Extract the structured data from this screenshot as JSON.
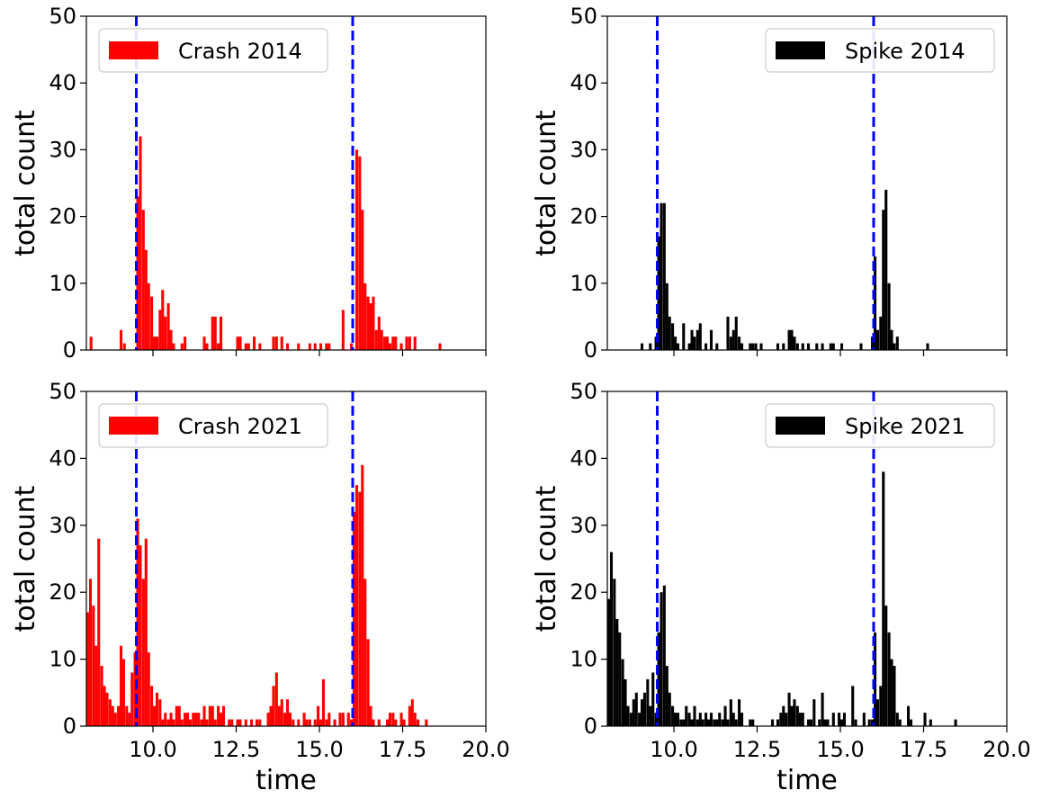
{
  "chart_data": [
    {
      "type": "bar",
      "panel": "top-left",
      "legend": "Crash 2014",
      "legend_position": "top-left",
      "color": "#ff0000",
      "xlim": [
        8.0,
        20.0
      ],
      "ylim": [
        0,
        50
      ],
      "xticks": [
        10.0,
        12.5,
        15.0,
        17.5,
        20.0
      ],
      "xtick_labels": [],
      "yticks": [
        0,
        10,
        20,
        30,
        40,
        50
      ],
      "ytick_labels": [
        "0",
        "10",
        "20",
        "30",
        "40",
        "50"
      ],
      "xlabel": "",
      "ylabel": "total count",
      "vlines": [
        9.5,
        16.0
      ],
      "vline_color": "#0000ff",
      "bin_width": 0.0833,
      "bins": [
        [
          8.1,
          2
        ],
        [
          9.0,
          3
        ],
        [
          9.1,
          1
        ],
        [
          9.5,
          23
        ],
        [
          9.58,
          32
        ],
        [
          9.67,
          21
        ],
        [
          9.75,
          15
        ],
        [
          9.83,
          10
        ],
        [
          9.92,
          8
        ],
        [
          10.0,
          2
        ],
        [
          10.08,
          2
        ],
        [
          10.17,
          6
        ],
        [
          10.25,
          9
        ],
        [
          10.33,
          5
        ],
        [
          10.42,
          7
        ],
        [
          10.5,
          3
        ],
        [
          10.58,
          1
        ],
        [
          10.83,
          1
        ],
        [
          10.92,
          2
        ],
        [
          11.5,
          2
        ],
        [
          11.58,
          1
        ],
        [
          11.75,
          5
        ],
        [
          11.83,
          5
        ],
        [
          11.92,
          1
        ],
        [
          12.0,
          5
        ],
        [
          12.5,
          2
        ],
        [
          12.58,
          2
        ],
        [
          12.75,
          1
        ],
        [
          12.83,
          1
        ],
        [
          13.0,
          2
        ],
        [
          13.17,
          1
        ],
        [
          13.58,
          2
        ],
        [
          13.67,
          2
        ],
        [
          13.83,
          2
        ],
        [
          14.0,
          1
        ],
        [
          14.33,
          1
        ],
        [
          14.67,
          1
        ],
        [
          14.83,
          1
        ],
        [
          15.0,
          1
        ],
        [
          15.17,
          1
        ],
        [
          15.25,
          1
        ],
        [
          15.67,
          6
        ],
        [
          15.92,
          1
        ],
        [
          16.08,
          30
        ],
        [
          16.17,
          29
        ],
        [
          16.25,
          21
        ],
        [
          16.33,
          10
        ],
        [
          16.42,
          8
        ],
        [
          16.5,
          7
        ],
        [
          16.58,
          8
        ],
        [
          16.67,
          3
        ],
        [
          16.75,
          5
        ],
        [
          16.83,
          3
        ],
        [
          16.92,
          2
        ],
        [
          17.0,
          2
        ],
        [
          17.08,
          1
        ],
        [
          17.17,
          2
        ],
        [
          17.25,
          2
        ],
        [
          17.42,
          1
        ],
        [
          17.58,
          2
        ],
        [
          17.67,
          2
        ],
        [
          17.83,
          2
        ],
        [
          18.58,
          1
        ]
      ]
    },
    {
      "type": "bar",
      "panel": "top-right",
      "legend": "Spike 2014",
      "legend_position": "top-right",
      "color": "#000000",
      "xlim": [
        8.0,
        20.0
      ],
      "ylim": [
        0,
        50
      ],
      "xticks": [
        10.0,
        12.5,
        15.0,
        17.5,
        20.0
      ],
      "xtick_labels": [],
      "yticks": [
        0,
        10,
        20,
        30,
        40,
        50
      ],
      "ytick_labels": [
        "0",
        "10",
        "20",
        "30",
        "40",
        "50"
      ],
      "xlabel": "",
      "ylabel": "total count",
      "vlines": [
        9.5,
        16.0
      ],
      "vline_color": "#0000ff",
      "bin_width": 0.0833,
      "bins": [
        [
          9.0,
          1
        ],
        [
          9.25,
          1
        ],
        [
          9.42,
          2
        ],
        [
          9.5,
          17
        ],
        [
          9.58,
          22
        ],
        [
          9.67,
          22
        ],
        [
          9.75,
          10
        ],
        [
          9.83,
          5
        ],
        [
          9.92,
          4
        ],
        [
          10.0,
          2
        ],
        [
          10.08,
          1
        ],
        [
          10.25,
          4
        ],
        [
          10.42,
          1
        ],
        [
          10.5,
          3
        ],
        [
          10.58,
          2
        ],
        [
          10.67,
          3
        ],
        [
          10.75,
          4
        ],
        [
          10.92,
          1
        ],
        [
          11.08,
          3
        ],
        [
          11.25,
          1
        ],
        [
          11.58,
          5
        ],
        [
          11.67,
          2
        ],
        [
          11.75,
          3
        ],
        [
          11.83,
          5
        ],
        [
          11.92,
          2
        ],
        [
          12.0,
          1
        ],
        [
          12.25,
          1
        ],
        [
          12.33,
          1
        ],
        [
          12.42,
          1
        ],
        [
          12.58,
          1
        ],
        [
          13.08,
          1
        ],
        [
          13.25,
          1
        ],
        [
          13.42,
          3
        ],
        [
          13.5,
          3
        ],
        [
          13.58,
          2
        ],
        [
          13.67,
          1
        ],
        [
          13.83,
          1
        ],
        [
          14.0,
          1
        ],
        [
          14.25,
          1
        ],
        [
          14.42,
          1
        ],
        [
          14.67,
          1
        ],
        [
          14.75,
          1
        ],
        [
          15.0,
          1
        ],
        [
          15.58,
          1
        ],
        [
          15.92,
          2
        ],
        [
          16.0,
          14
        ],
        [
          16.08,
          3
        ],
        [
          16.17,
          5
        ],
        [
          16.25,
          21
        ],
        [
          16.33,
          24
        ],
        [
          16.42,
          10
        ],
        [
          16.5,
          3
        ],
        [
          16.58,
          1
        ],
        [
          16.67,
          2
        ],
        [
          17.58,
          1
        ]
      ]
    },
    {
      "type": "bar",
      "panel": "bottom-left",
      "legend": "Crash 2021",
      "legend_position": "top-left",
      "color": "#ff0000",
      "xlim": [
        8.0,
        20.0
      ],
      "ylim": [
        0,
        50
      ],
      "xticks": [
        10.0,
        12.5,
        15.0,
        17.5,
        20.0
      ],
      "xtick_labels": [
        "10.0",
        "12.5",
        "15.0",
        "17.5",
        "20.0"
      ],
      "yticks": [
        0,
        10,
        20,
        30,
        40,
        50
      ],
      "ytick_labels": [
        "0",
        "10",
        "20",
        "30",
        "40",
        "50"
      ],
      "xlabel": "time",
      "ylabel": "total count",
      "vlines": [
        9.5,
        16.0
      ],
      "vline_color": "#0000ff",
      "bin_width": 0.0833,
      "bins": [
        [
          8.0,
          17
        ],
        [
          8.08,
          22
        ],
        [
          8.17,
          18
        ],
        [
          8.25,
          12
        ],
        [
          8.33,
          28
        ],
        [
          8.42,
          9
        ],
        [
          8.5,
          6
        ],
        [
          8.58,
          5
        ],
        [
          8.67,
          4
        ],
        [
          8.75,
          3
        ],
        [
          8.83,
          2
        ],
        [
          8.92,
          3
        ],
        [
          9.0,
          12
        ],
        [
          9.08,
          10
        ],
        [
          9.17,
          3
        ],
        [
          9.25,
          2
        ],
        [
          9.33,
          8
        ],
        [
          9.42,
          11
        ],
        [
          9.5,
          31
        ],
        [
          9.58,
          27
        ],
        [
          9.67,
          22
        ],
        [
          9.75,
          28
        ],
        [
          9.83,
          11
        ],
        [
          9.92,
          6
        ],
        [
          10.0,
          3
        ],
        [
          10.08,
          5
        ],
        [
          10.17,
          4
        ],
        [
          10.25,
          1
        ],
        [
          10.33,
          2
        ],
        [
          10.42,
          1
        ],
        [
          10.5,
          2
        ],
        [
          10.58,
          1
        ],
        [
          10.67,
          3
        ],
        [
          10.75,
          3
        ],
        [
          10.83,
          1
        ],
        [
          10.92,
          2
        ],
        [
          11.0,
          2
        ],
        [
          11.08,
          1
        ],
        [
          11.17,
          2
        ],
        [
          11.25,
          2
        ],
        [
          11.33,
          2
        ],
        [
          11.42,
          1
        ],
        [
          11.5,
          3
        ],
        [
          11.58,
          1
        ],
        [
          11.67,
          3
        ],
        [
          11.75,
          3
        ],
        [
          11.83,
          1
        ],
        [
          11.92,
          3
        ],
        [
          12.0,
          2
        ],
        [
          12.08,
          3
        ],
        [
          12.25,
          1
        ],
        [
          12.33,
          1
        ],
        [
          12.5,
          1
        ],
        [
          12.58,
          1
        ],
        [
          12.75,
          1
        ],
        [
          12.92,
          1
        ],
        [
          13.08,
          1
        ],
        [
          13.17,
          1
        ],
        [
          13.42,
          2
        ],
        [
          13.5,
          3
        ],
        [
          13.58,
          6
        ],
        [
          13.67,
          8
        ],
        [
          13.75,
          3
        ],
        [
          13.83,
          4
        ],
        [
          13.92,
          2
        ],
        [
          14.0,
          4
        ],
        [
          14.08,
          2
        ],
        [
          14.17,
          1
        ],
        [
          14.33,
          1
        ],
        [
          14.5,
          2
        ],
        [
          14.58,
          1
        ],
        [
          14.67,
          1
        ],
        [
          14.83,
          1
        ],
        [
          14.92,
          3
        ],
        [
          15.0,
          1
        ],
        [
          15.08,
          7
        ],
        [
          15.17,
          1
        ],
        [
          15.25,
          2
        ],
        [
          15.42,
          1
        ],
        [
          15.58,
          2
        ],
        [
          15.67,
          2
        ],
        [
          15.83,
          2
        ],
        [
          15.92,
          1
        ],
        [
          16.0,
          32
        ],
        [
          16.08,
          36
        ],
        [
          16.17,
          35
        ],
        [
          16.25,
          39
        ],
        [
          16.33,
          22
        ],
        [
          16.42,
          13
        ],
        [
          16.5,
          3
        ],
        [
          16.58,
          1
        ],
        [
          16.75,
          1
        ],
        [
          17.0,
          1
        ],
        [
          17.08,
          2
        ],
        [
          17.17,
          2
        ],
        [
          17.25,
          1
        ],
        [
          17.42,
          2
        ],
        [
          17.5,
          1
        ],
        [
          17.67,
          3
        ],
        [
          17.75,
          4
        ],
        [
          17.83,
          2
        ],
        [
          17.92,
          1
        ],
        [
          18.17,
          1
        ]
      ]
    },
    {
      "type": "bar",
      "panel": "bottom-right",
      "legend": "Spike 2021",
      "legend_position": "top-right",
      "color": "#000000",
      "xlim": [
        8.0,
        20.0
      ],
      "ylim": [
        0,
        50
      ],
      "xticks": [
        10.0,
        12.5,
        15.0,
        17.5,
        20.0
      ],
      "xtick_labels": [
        "10.0",
        "12.5",
        "15.0",
        "17.5",
        "20.0"
      ],
      "yticks": [
        0,
        10,
        20,
        30,
        40,
        50
      ],
      "ytick_labels": [
        "0",
        "10",
        "20",
        "30",
        "40",
        "50"
      ],
      "xlabel": "time",
      "ylabel": "total count",
      "vlines": [
        9.5,
        16.0
      ],
      "vline_color": "#0000ff",
      "bin_width": 0.0833,
      "bins": [
        [
          8.0,
          19
        ],
        [
          8.08,
          26
        ],
        [
          8.17,
          22
        ],
        [
          8.25,
          16
        ],
        [
          8.33,
          14
        ],
        [
          8.42,
          10
        ],
        [
          8.5,
          7
        ],
        [
          8.58,
          3
        ],
        [
          8.67,
          2
        ],
        [
          8.75,
          4
        ],
        [
          8.83,
          5
        ],
        [
          8.92,
          2
        ],
        [
          9.0,
          4
        ],
        [
          9.08,
          5
        ],
        [
          9.17,
          7
        ],
        [
          9.25,
          3
        ],
        [
          9.33,
          8
        ],
        [
          9.42,
          2
        ],
        [
          9.5,
          14
        ],
        [
          9.58,
          20
        ],
        [
          9.67,
          21
        ],
        [
          9.75,
          9
        ],
        [
          9.83,
          5
        ],
        [
          9.92,
          3
        ],
        [
          10.0,
          2
        ],
        [
          10.08,
          2
        ],
        [
          10.17,
          1
        ],
        [
          10.25,
          1
        ],
        [
          10.33,
          3
        ],
        [
          10.42,
          2
        ],
        [
          10.5,
          1
        ],
        [
          10.58,
          3
        ],
        [
          10.67,
          1
        ],
        [
          10.75,
          2
        ],
        [
          10.83,
          1
        ],
        [
          10.92,
          2
        ],
        [
          11.0,
          1
        ],
        [
          11.08,
          2
        ],
        [
          11.17,
          1
        ],
        [
          11.25,
          1
        ],
        [
          11.33,
          2
        ],
        [
          11.42,
          1
        ],
        [
          11.5,
          3
        ],
        [
          11.58,
          1
        ],
        [
          11.67,
          4
        ],
        [
          11.75,
          2
        ],
        [
          11.83,
          1
        ],
        [
          11.92,
          4
        ],
        [
          12.0,
          2
        ],
        [
          12.25,
          1
        ],
        [
          12.33,
          1
        ],
        [
          12.92,
          1
        ],
        [
          13.08,
          1
        ],
        [
          13.17,
          2
        ],
        [
          13.25,
          3
        ],
        [
          13.33,
          2
        ],
        [
          13.42,
          5
        ],
        [
          13.5,
          3
        ],
        [
          13.58,
          4
        ],
        [
          13.67,
          3
        ],
        [
          13.75,
          2
        ],
        [
          13.83,
          2
        ],
        [
          14.0,
          1
        ],
        [
          14.08,
          1
        ],
        [
          14.17,
          4
        ],
        [
          14.33,
          1
        ],
        [
          14.42,
          5
        ],
        [
          14.5,
          1
        ],
        [
          14.58,
          1
        ],
        [
          14.75,
          2
        ],
        [
          14.92,
          2
        ],
        [
          15.0,
          1
        ],
        [
          15.08,
          2
        ],
        [
          15.33,
          6
        ],
        [
          15.42,
          1
        ],
        [
          15.67,
          2
        ],
        [
          15.83,
          1
        ],
        [
          15.92,
          1
        ],
        [
          16.0,
          14
        ],
        [
          16.08,
          4
        ],
        [
          16.17,
          6
        ],
        [
          16.25,
          38
        ],
        [
          16.33,
          18
        ],
        [
          16.42,
          14
        ],
        [
          16.5,
          10
        ],
        [
          16.58,
          9
        ],
        [
          16.67,
          2
        ],
        [
          16.75,
          1
        ],
        [
          17.0,
          3
        ],
        [
          17.08,
          1
        ],
        [
          17.5,
          2
        ],
        [
          17.67,
          1
        ],
        [
          18.42,
          1
        ]
      ]
    }
  ]
}
